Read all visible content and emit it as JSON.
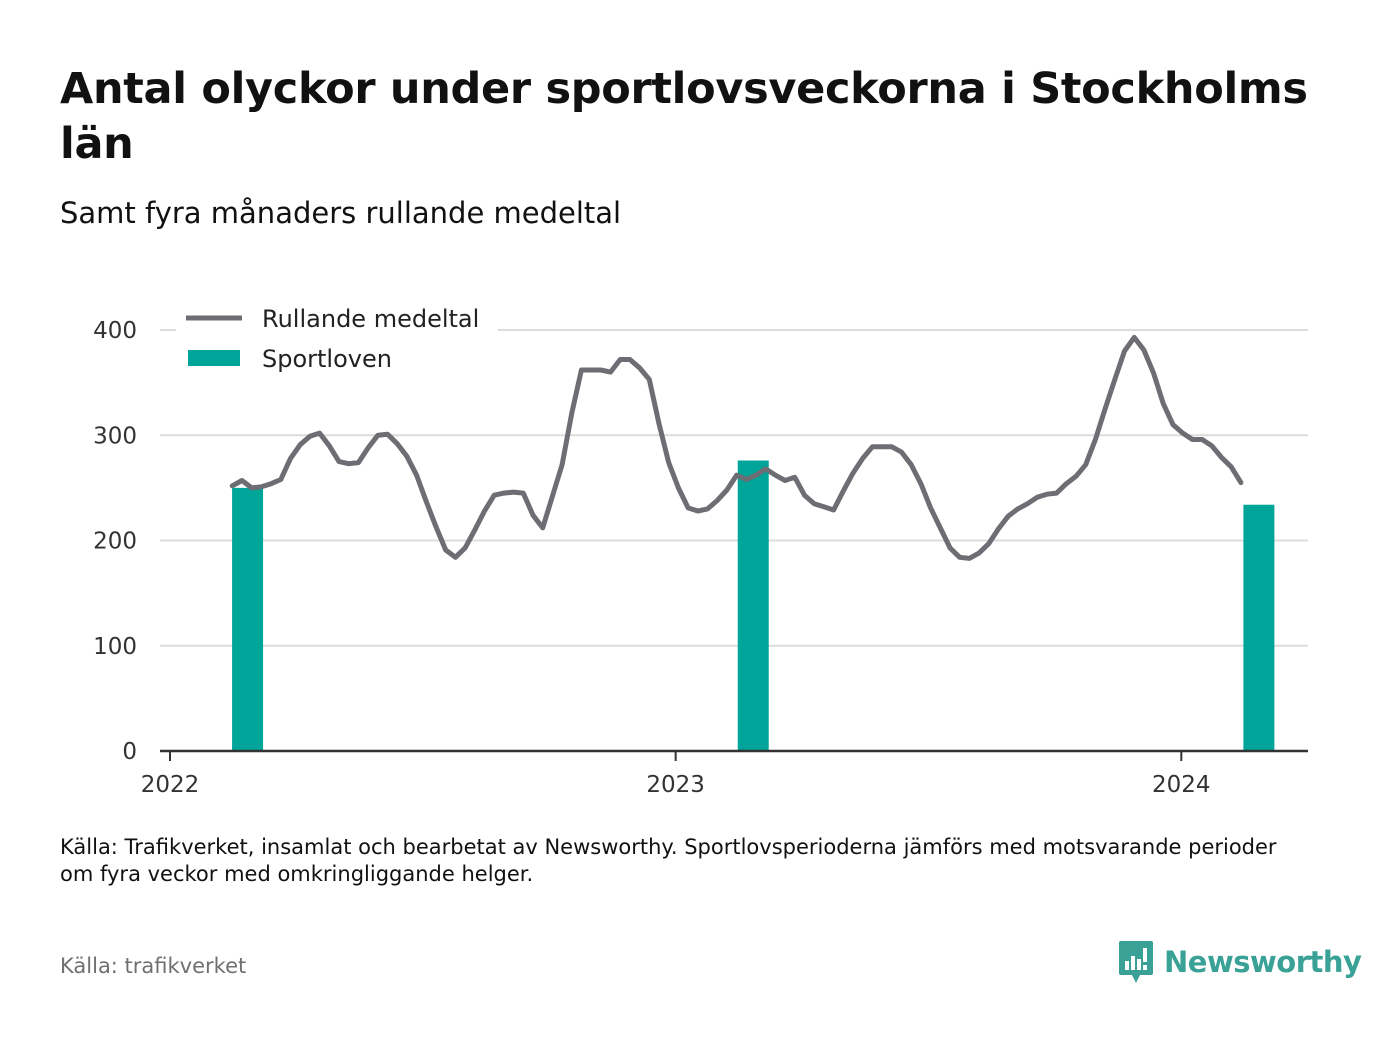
{
  "title": "Antal olyckor under sportlovsveckorna i Stockholms län",
  "subtitle": "Samt fyra månaders rullande medeltal",
  "caption": "Källa: Trafikverket, insamlat och bearbetat av Newsworthy. Sportlovsperioderna jämförs med motsvarande perioder om fyra veckor med omkringliggande helger.",
  "source": "Källa: trafikverket",
  "brand": {
    "name": "Newsworthy",
    "icon": "newsworthy-logo-icon"
  },
  "colors": {
    "line": "#6d6d74",
    "bar": "#00a59a",
    "grid": "#dcdcdc",
    "axis": "#333333",
    "brand": "#3aa196"
  },
  "chart_data": {
    "type": "bar+line",
    "legend": [
      "Rullande medeltal",
      "Sportloven"
    ],
    "legend_position": "top-left",
    "grid": true,
    "ylim": [
      0,
      400
    ],
    "yticks": [
      "0",
      "100",
      "200",
      "300",
      "400"
    ],
    "xticks": [
      "2022",
      "2023",
      "2024"
    ],
    "xlim": [
      "2022-01-01",
      "2024-03-25"
    ],
    "bars": {
      "name": "Sportloven",
      "x": [
        "2022-02-26",
        "2023-02-26",
        "2024-02-26"
      ],
      "values": [
        250,
        276,
        234
      ]
    },
    "line": {
      "name": "Rullande medeltal",
      "x": [
        "2022-02-15",
        "2022-02-22",
        "2022-03-01",
        "2022-03-08",
        "2022-03-15",
        "2022-03-22",
        "2022-03-29",
        "2022-04-05",
        "2022-04-12",
        "2022-04-19",
        "2022-04-26",
        "2022-05-03",
        "2022-05-10",
        "2022-05-17",
        "2022-05-24",
        "2022-05-31",
        "2022-06-07",
        "2022-06-14",
        "2022-06-21",
        "2022-06-28",
        "2022-07-05",
        "2022-07-12",
        "2022-07-19",
        "2022-07-26",
        "2022-08-02",
        "2022-08-09",
        "2022-08-16",
        "2022-08-23",
        "2022-08-30",
        "2022-09-06",
        "2022-09-13",
        "2022-09-20",
        "2022-09-27",
        "2022-10-04",
        "2022-10-11",
        "2022-10-18",
        "2022-10-25",
        "2022-11-01",
        "2022-11-08",
        "2022-11-15",
        "2022-11-22",
        "2022-11-29",
        "2022-12-06",
        "2022-12-13",
        "2022-12-20",
        "2022-12-27",
        "2023-01-03",
        "2023-01-10",
        "2023-01-17",
        "2023-01-24",
        "2023-01-31",
        "2023-02-07",
        "2023-02-14",
        "2023-02-21",
        "2023-02-28",
        "2023-03-07",
        "2023-03-14",
        "2023-03-21",
        "2023-03-28",
        "2023-04-04",
        "2023-04-11",
        "2023-04-18",
        "2023-04-25",
        "2023-05-02",
        "2023-05-09",
        "2023-05-16",
        "2023-05-23",
        "2023-05-30",
        "2023-06-06",
        "2023-06-13",
        "2023-06-20",
        "2023-06-27",
        "2023-07-04",
        "2023-07-11",
        "2023-07-18",
        "2023-07-25",
        "2023-08-01",
        "2023-08-08",
        "2023-08-15",
        "2023-08-22",
        "2023-08-29",
        "2023-09-05",
        "2023-09-12",
        "2023-09-19",
        "2023-09-26",
        "2023-10-03",
        "2023-10-10",
        "2023-10-17",
        "2023-10-24",
        "2023-10-31",
        "2023-11-07",
        "2023-11-14",
        "2023-11-21",
        "2023-11-28",
        "2023-12-05",
        "2023-12-12",
        "2023-12-19",
        "2023-12-26",
        "2024-01-02",
        "2024-01-09",
        "2024-01-16",
        "2024-01-23",
        "2024-01-30",
        "2024-02-06",
        "2024-02-13"
      ],
      "values": [
        252,
        257,
        250,
        251,
        254,
        258,
        278,
        291,
        299,
        302,
        290,
        275,
        273,
        274,
        288,
        300,
        301,
        292,
        280,
        262,
        237,
        213,
        191,
        184,
        193,
        210,
        228,
        243,
        245,
        246,
        245,
        224,
        212,
        242,
        272,
        321,
        362,
        362,
        362,
        360,
        372,
        372,
        364,
        353,
        311,
        274,
        250,
        231,
        228,
        230,
        238,
        248,
        262,
        258,
        262,
        268,
        262,
        257,
        260,
        243,
        235,
        232,
        229,
        247,
        264,
        278,
        289,
        289,
        289,
        284,
        272,
        254,
        231,
        212,
        193,
        184,
        183,
        188,
        197,
        211,
        223,
        230,
        235,
        241,
        244,
        245,
        254,
        261,
        272,
        296,
        325,
        353,
        380,
        393,
        381,
        359,
        330,
        310,
        302,
        296,
        296,
        290,
        279,
        270,
        255
      ]
    }
  }
}
